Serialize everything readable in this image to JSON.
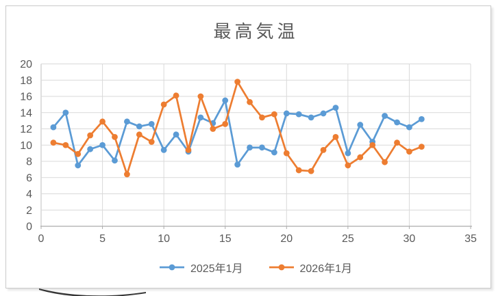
{
  "chart_data": {
    "type": "line",
    "title": "最高気温",
    "x": [
      1,
      2,
      3,
      4,
      5,
      6,
      7,
      8,
      9,
      10,
      11,
      12,
      13,
      14,
      15,
      16,
      17,
      18,
      19,
      20,
      21,
      22,
      23,
      24,
      25,
      26,
      27,
      28,
      29,
      30,
      31
    ],
    "series": [
      {
        "name": "2025年1月",
        "color": "#5B9BD5",
        "values": [
          12.2,
          14.0,
          7.5,
          9.5,
          10.0,
          8.1,
          12.9,
          12.3,
          12.6,
          9.4,
          11.3,
          9.2,
          13.4,
          12.7,
          15.5,
          7.6,
          9.7,
          9.7,
          9.1,
          13.9,
          13.8,
          13.4,
          13.9,
          14.6,
          9.0,
          12.5,
          10.4,
          13.6,
          12.8,
          12.2,
          13.2
        ]
      },
      {
        "name": "2026年1月",
        "color": "#ED7D31",
        "values": [
          10.3,
          10.0,
          8.9,
          11.2,
          12.9,
          11.0,
          6.4,
          11.3,
          10.4,
          15.0,
          16.1,
          9.4,
          16.0,
          12.0,
          12.6,
          17.8,
          15.3,
          13.4,
          13.8,
          9.0,
          6.9,
          6.8,
          9.4,
          11.0,
          7.5,
          8.5,
          10.0,
          7.9,
          10.3,
          9.2,
          9.8
        ]
      }
    ],
    "xlabel": "",
    "ylabel": "",
    "xlim": [
      0,
      35
    ],
    "ylim": [
      0,
      20
    ],
    "x_ticks": [
      0,
      5,
      10,
      15,
      20,
      25,
      30,
      35
    ],
    "y_ticks": [
      0,
      2,
      4,
      6,
      8,
      10,
      12,
      14,
      16,
      18,
      20
    ],
    "grid": true,
    "legend_position": "bottom",
    "colors": {
      "gridline": "#D9D9D9",
      "left_axis": "#BFBFBF",
      "bottom_axis": "#ABABAB",
      "tick_label": "#595959",
      "title": "#595959"
    }
  }
}
